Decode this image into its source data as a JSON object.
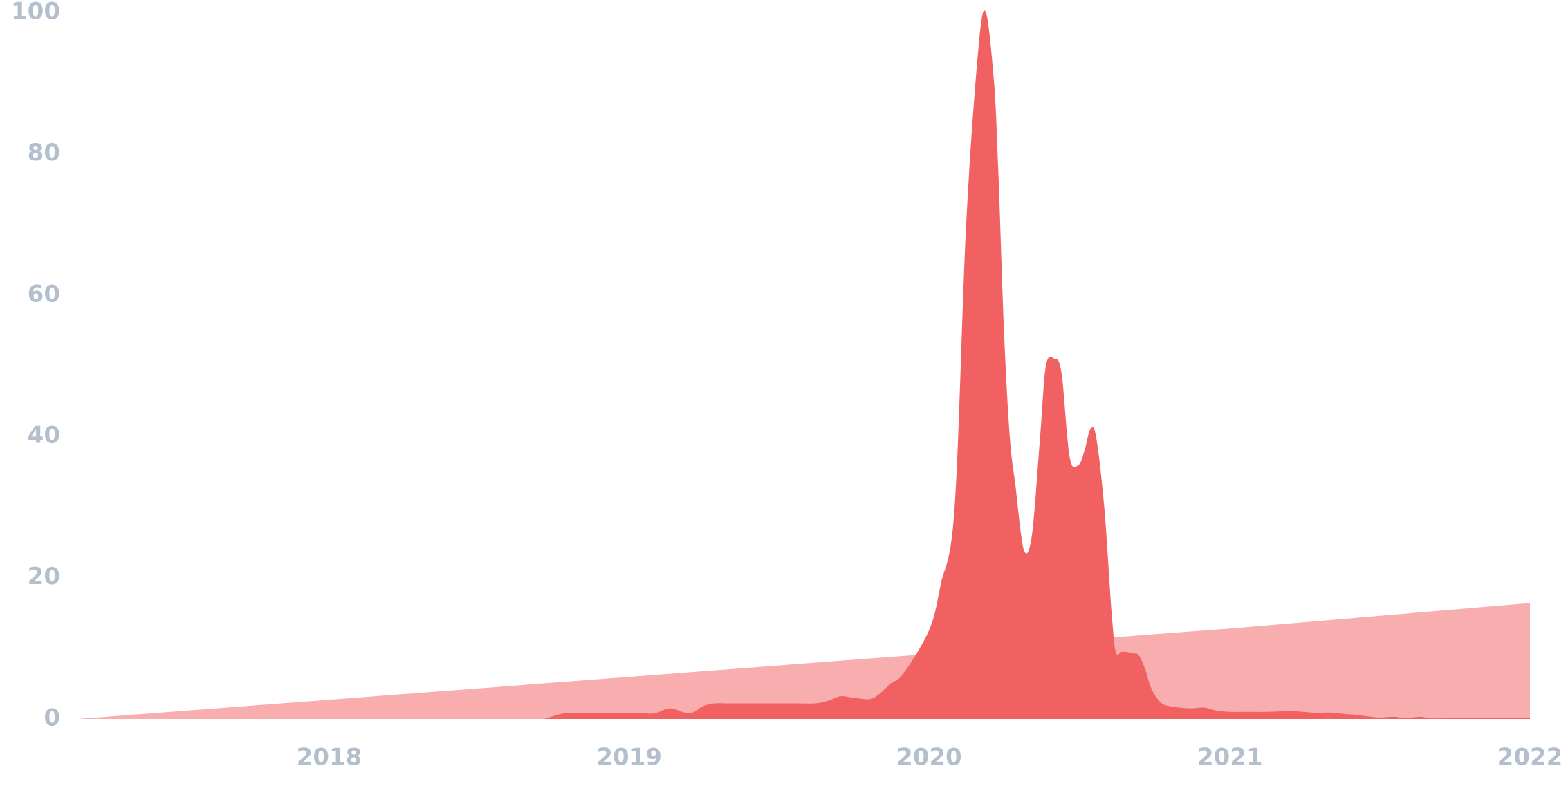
{
  "chart_data": {
    "type": "area",
    "y_ticks": [
      "0",
      "20",
      "40",
      "60",
      "80",
      "100"
    ],
    "x_ticks": [
      {
        "label": "2018",
        "date": "2018-01-01"
      },
      {
        "label": "2019",
        "date": "2019-01-01"
      },
      {
        "label": "2020",
        "date": "2020-01-01"
      },
      {
        "label": "2021",
        "date": "2021-01-01"
      },
      {
        "label": "2022",
        "date": "2022-01-01"
      }
    ],
    "ylim": [
      0,
      100
    ],
    "xlim": [
      "2017-03-01",
      "2022-01-01"
    ],
    "grid": false,
    "series": [
      {
        "fill": "#f8aeae",
        "x": [
          "2017-03-01",
          "2020-01-01",
          "2020-03-01",
          "2020-10-01",
          "2021-01-01",
          "2022-01-01"
        ],
        "y": [
          0,
          9.2,
          10,
          12,
          12.8,
          16.4
        ]
      },
      {
        "fill": "#f26161",
        "x": [
          "2018-09-20",
          "2018-10-15",
          "2018-11-15",
          "2018-12-15",
          "2019-01-15",
          "2019-02-01",
          "2019-02-20",
          "2019-03-15",
          "2019-04-01",
          "2019-04-15",
          "2019-05-01",
          "2019-05-20",
          "2019-06-20",
          "2019-07-20",
          "2019-08-15",
          "2019-09-01",
          "2019-09-15",
          "2019-10-01",
          "2019-10-20",
          "2019-11-01",
          "2019-11-15",
          "2019-12-01",
          "2020-01-01",
          "2020-01-15",
          "2020-02-01",
          "2020-02-15",
          "2020-03-01",
          "2020-03-10",
          "2020-03-20",
          "2020-03-25",
          "2020-04-01",
          "2020-04-08",
          "2020-04-15",
          "2020-04-25",
          "2020-05-05",
          "2020-05-15",
          "2020-05-22",
          "2020-06-01",
          "2020-06-10",
          "2020-06-20",
          "2020-07-01",
          "2020-07-08",
          "2020-07-15",
          "2020-07-22",
          "2020-08-01",
          "2020-08-10",
          "2020-08-15",
          "2020-08-22",
          "2020-08-28",
          "2020-09-05",
          "2020-09-12",
          "2020-09-20",
          "2020-09-25",
          "2020-10-01",
          "2020-10-10",
          "2020-10-20",
          "2020-11-01",
          "2020-11-15",
          "2020-12-01",
          "2020-12-15",
          "2021-01-01",
          "2021-01-20",
          "2021-02-15",
          "2021-03-15",
          "2021-04-01",
          "2021-04-20",
          "2021-05-01",
          "2021-05-20",
          "2021-06-01",
          "2021-06-15",
          "2021-07-01",
          "2021-07-20",
          "2021-08-01",
          "2021-08-20",
          "2021-09-01",
          "2021-09-20",
          "2021-10-01",
          "2021-10-15",
          "2021-11-01",
          "2021-11-20",
          "2021-12-05",
          "2021-12-20",
          "2022-01-01"
        ],
        "y": [
          0,
          0.8,
          0.8,
          0.8,
          0.8,
          0.8,
          1.5,
          0.8,
          1.8,
          2.2,
          2.2,
          2.2,
          2.2,
          2.2,
          2.2,
          2.6,
          3.2,
          3.0,
          2.8,
          3.5,
          5,
          6.5,
          12.6,
          19,
          30,
          70,
          95,
          100,
          90,
          78,
          55,
          40,
          33,
          24,
          26,
          40,
          50,
          51,
          49,
          37,
          36,
          38,
          41,
          40,
          30,
          15,
          9.5,
          9.5,
          9.5,
          9.3,
          9,
          7,
          5,
          3.5,
          2.2,
          1.8,
          1.6,
          1.5,
          1.6,
          1.2,
          1.0,
          1.0,
          1.0,
          1.1,
          1.0,
          0.8,
          0.9,
          0.7,
          0.6,
          0.4,
          0.2,
          0.3,
          0.1,
          0.3,
          0.1,
          0.1,
          0.1,
          0.1,
          0.1,
          0.1,
          0.1,
          0.1,
          0.1
        ]
      }
    ],
    "colors": {
      "axis_text": "#b3bfcc",
      "background": "#ffffff"
    }
  }
}
